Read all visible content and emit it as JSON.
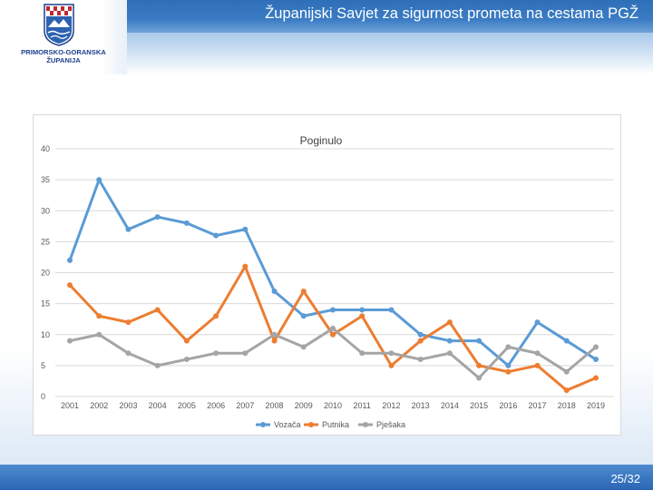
{
  "header": {
    "title": "Županijski Savjet za sigurnost prometa na cestama PGŽ"
  },
  "logo": {
    "line1": "PRIMORSKO-GORANSKA",
    "line2": "ŽUPANIJA"
  },
  "footer": {
    "page": "25/32"
  },
  "colors": {
    "header_blue": "#2e6fb8",
    "series_vozaca": "#5b9bd5",
    "series_putnika": "#ed7d31",
    "series_pjesaka": "#a5a5a5"
  },
  "chart_data": {
    "type": "line",
    "title": "Poginulo",
    "xlabel": "",
    "ylabel": "",
    "ylim": [
      0,
      40
    ],
    "yticks": [
      "0",
      "5",
      "10",
      "15",
      "20",
      "25",
      "30",
      "35",
      "40"
    ],
    "categories": [
      "2001",
      "2002",
      "2003",
      "2004",
      "2005",
      "2006",
      "2007",
      "2008",
      "2009",
      "2010",
      "2011",
      "2012",
      "2013",
      "2014",
      "2015",
      "2016",
      "2017",
      "2018",
      "2019"
    ],
    "grid": true,
    "legend": "bottom",
    "series": [
      {
        "name": "Vozača",
        "values": [
          22,
          35,
          27,
          29,
          28,
          26,
          27,
          17,
          13,
          14,
          14,
          14,
          10,
          9,
          9,
          5,
          12,
          9,
          6
        ]
      },
      {
        "name": "Putnika",
        "values": [
          18,
          13,
          12,
          14,
          9,
          13,
          21,
          9,
          17,
          10,
          13,
          5,
          9,
          12,
          5,
          4,
          5,
          1,
          3
        ]
      },
      {
        "name": "Pješaka",
        "values": [
          9,
          10,
          7,
          5,
          6,
          7,
          7,
          10,
          8,
          11,
          7,
          7,
          6,
          7,
          3,
          8,
          7,
          4,
          8
        ]
      }
    ]
  }
}
